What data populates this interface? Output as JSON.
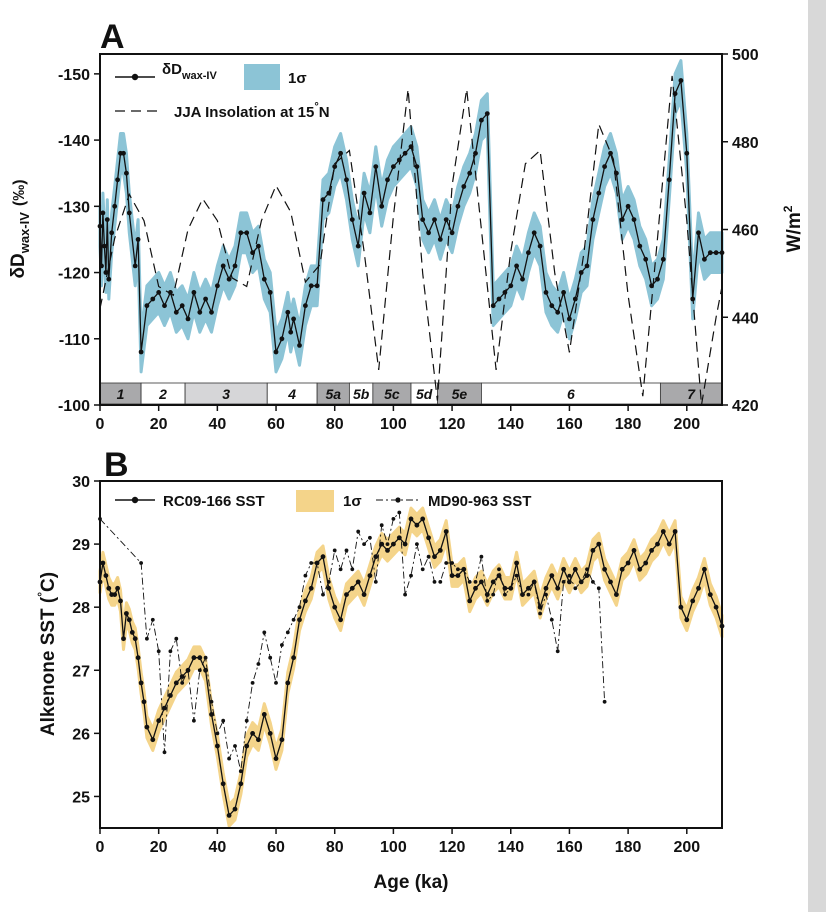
{
  "panels": {
    "a": {
      "label": "A"
    },
    "b": {
      "label": "B"
    }
  },
  "colors": {
    "band_a": "#8cc4d6",
    "band_b": "#f4d48a",
    "line": "#111111",
    "stage_dark": "#a9a9ab",
    "stage_mid": "#d6d6d8",
    "stage_light": "#ffffff"
  },
  "chart_data": [
    {
      "type": "line",
      "panel": "A",
      "xlabel": "",
      "ylabel_left": {
        "main": "δD",
        "sub": "wax-IV",
        "unit": "(‰)"
      },
      "ylabel_right": {
        "main": "W/m",
        "sup": "2"
      },
      "xlim": [
        0,
        212
      ],
      "ylim_left": [
        -100,
        -153
      ],
      "ylim_right": [
        420,
        500
      ],
      "x_ticks": [
        "0",
        "20",
        "40",
        "60",
        "80",
        "100",
        "120",
        "140",
        "160",
        "180",
        "200"
      ],
      "y_ticks_left": [
        "-150",
        "-140",
        "-130",
        "-120",
        "-110",
        "-100"
      ],
      "y_ticks_right": [
        "500",
        "480",
        "460",
        "440",
        "420"
      ],
      "legend": {
        "series1_main": "δD",
        "series1_sub": "wax-IV",
        "band": "1σ",
        "insolation_main": "JJA Insolation at 15",
        "insolation_deg": "°",
        "insolation_end": "N"
      },
      "series": [
        {
          "name": "δDwax-IV",
          "x": [
            0,
            0.5,
            1,
            1.5,
            2,
            2.5,
            3,
            4,
            5,
            6,
            7,
            8,
            9,
            10,
            12,
            13,
            14,
            16,
            18,
            20,
            22,
            24,
            26,
            28,
            30,
            32,
            34,
            36,
            38,
            40,
            42,
            44,
            46,
            48,
            50,
            52,
            54,
            56,
            58,
            60,
            62,
            64,
            65,
            66,
            68,
            70,
            72,
            74,
            76,
            78,
            80,
            82,
            84,
            86,
            88,
            90,
            92,
            94,
            96,
            98,
            100,
            102,
            104,
            106,
            108,
            110,
            112,
            114,
            116,
            118,
            120,
            122,
            124,
            126,
            128,
            130,
            132,
            134,
            136,
            138,
            140,
            142,
            144,
            146,
            148,
            150,
            152,
            154,
            156,
            158,
            160,
            162,
            164,
            166,
            168,
            170,
            172,
            174,
            176,
            178,
            180,
            182,
            184,
            186,
            188,
            190,
            192,
            194,
            196,
            198,
            200,
            202,
            204,
            206,
            208,
            210,
            212
          ],
          "values": [
            -127,
            -121,
            -129,
            -124,
            -120,
            -128,
            -119,
            -126,
            -130,
            -134,
            -138,
            -138,
            -135,
            -129,
            -121,
            -125,
            -108,
            -115,
            -116,
            -117,
            -115,
            -117,
            -114,
            -115,
            -113,
            -117,
            -114,
            -116,
            -114,
            -118,
            -121,
            -119,
            -121,
            -126,
            -126,
            -123,
            -124,
            -119,
            -117,
            -108,
            -110,
            -114,
            -111,
            -113,
            -109,
            -115,
            -118,
            -118,
            -131,
            -132,
            -136,
            -138,
            -134,
            -128,
            -124,
            -132,
            -129,
            -136,
            -130,
            -134,
            -136,
            -137,
            -138,
            -139,
            -136,
            -128,
            -126,
            -128,
            -125,
            -128,
            -126,
            -130,
            -133,
            -135,
            -138,
            -143,
            -144,
            -115,
            -116,
            -117,
            -118,
            -121,
            -119,
            -123,
            -126,
            -124,
            -117,
            -115,
            -114,
            -117,
            -113,
            -116,
            -120,
            -121,
            -128,
            -132,
            -136,
            -138,
            -135,
            -128,
            -130,
            -128,
            -124,
            -122,
            -118,
            -119,
            -122,
            -134,
            -147,
            -149,
            -138,
            -116,
            -126,
            -122,
            -123,
            -123,
            -123
          ],
          "sigma": 3
        },
        {
          "name": "JJA Insolation at 15°N",
          "x": [
            0,
            5,
            10,
            15,
            20,
            25,
            30,
            35,
            40,
            45,
            50,
            55,
            60,
            65,
            70,
            75,
            80,
            85,
            90,
            95,
            100,
            105,
            110,
            115,
            120,
            125,
            130,
            135,
            140,
            145,
            150,
            155,
            160,
            165,
            170,
            175,
            180,
            185,
            190,
            195,
            200,
            205,
            210,
            212
          ],
          "values": [
            442,
            458,
            468,
            462,
            447,
            445,
            460,
            467,
            462,
            449,
            447,
            462,
            470,
            464,
            448,
            452,
            475,
            478,
            455,
            428,
            463,
            492,
            450,
            421,
            470,
            492,
            460,
            428,
            455,
            475,
            478,
            450,
            432,
            455,
            484,
            476,
            445,
            422,
            458,
            495,
            462,
            420,
            440,
            447
          ]
        }
      ],
      "stages": [
        {
          "label": "1",
          "from": 0,
          "to": 14,
          "shade": "dark"
        },
        {
          "label": "2",
          "from": 14,
          "to": 29,
          "shade": "light"
        },
        {
          "label": "3",
          "from": 29,
          "to": 57,
          "shade": "mid"
        },
        {
          "label": "4",
          "from": 57,
          "to": 74,
          "shade": "light"
        },
        {
          "label": "5a",
          "from": 74,
          "to": 85,
          "shade": "dark"
        },
        {
          "label": "5b",
          "from": 85,
          "to": 93,
          "shade": "light"
        },
        {
          "label": "5c",
          "from": 93,
          "to": 106,
          "shade": "dark"
        },
        {
          "label": "5d",
          "from": 106,
          "to": 115,
          "shade": "light"
        },
        {
          "label": "5e",
          "from": 115,
          "to": 130,
          "shade": "dark"
        },
        {
          "label": "6",
          "from": 130,
          "to": 191,
          "shade": "light"
        },
        {
          "label": "7",
          "from": 191,
          "to": 212,
          "shade": "dark"
        }
      ]
    },
    {
      "type": "line",
      "panel": "B",
      "xlabel": "Age (ka)",
      "ylabel": {
        "main": "Alkenone SST (",
        "deg": "°",
        "end": "C)"
      },
      "xlim": [
        0,
        212
      ],
      "ylim": [
        24.5,
        30.0
      ],
      "x_ticks": [
        "0",
        "20",
        "40",
        "60",
        "80",
        "100",
        "120",
        "140",
        "160",
        "180",
        "200"
      ],
      "y_ticks": [
        "30",
        "29",
        "28",
        "27",
        "26",
        "25"
      ],
      "legend": {
        "s1": "RC09-166 SST",
        "band": "1σ",
        "s2": "MD90-963 SST"
      },
      "series": [
        {
          "name": "RC09-166 SST",
          "x": [
            0,
            1,
            2,
            3,
            4,
            5,
            6,
            7,
            8,
            9,
            10,
            11,
            12,
            13,
            14,
            15,
            16,
            18,
            20,
            22,
            24,
            26,
            28,
            30,
            32,
            34,
            36,
            38,
            40,
            42,
            44,
            46,
            48,
            50,
            52,
            54,
            56,
            58,
            60,
            62,
            64,
            66,
            68,
            70,
            72,
            74,
            76,
            78,
            80,
            82,
            84,
            86,
            88,
            90,
            92,
            94,
            96,
            98,
            100,
            102,
            104,
            106,
            108,
            110,
            112,
            114,
            116,
            118,
            120,
            122,
            124,
            126,
            128,
            130,
            132,
            134,
            136,
            138,
            140,
            142,
            144,
            146,
            148,
            150,
            152,
            154,
            156,
            158,
            160,
            162,
            164,
            166,
            168,
            170,
            172,
            174,
            176,
            178,
            180,
            182,
            184,
            186,
            188,
            190,
            192,
            194,
            196,
            198,
            200,
            202,
            204,
            206,
            208,
            210,
            212
          ],
          "values": [
            28.4,
            28.7,
            28.5,
            28.3,
            28.2,
            28.2,
            28.3,
            28.1,
            27.5,
            27.9,
            27.8,
            27.6,
            27.5,
            27.2,
            26.8,
            26.5,
            26.1,
            25.9,
            26.2,
            26.4,
            26.6,
            26.8,
            26.9,
            27.0,
            27.2,
            27.2,
            27.0,
            26.3,
            25.8,
            25.2,
            24.7,
            24.8,
            25.2,
            25.8,
            26.0,
            25.9,
            26.3,
            26.0,
            25.6,
            25.9,
            26.8,
            27.2,
            27.8,
            28.1,
            28.3,
            28.7,
            28.8,
            28.3,
            28.0,
            27.8,
            28.2,
            28.3,
            28.4,
            28.2,
            28.5,
            28.8,
            29.0,
            28.9,
            29.0,
            29.1,
            29.0,
            29.4,
            29.3,
            29.4,
            29.1,
            28.8,
            28.9,
            29.2,
            28.5,
            28.5,
            28.6,
            28.1,
            28.3,
            28.4,
            28.2,
            28.4,
            28.5,
            28.3,
            28.3,
            28.7,
            28.2,
            28.3,
            28.4,
            28.0,
            28.3,
            28.5,
            28.3,
            28.6,
            28.4,
            28.6,
            28.4,
            28.5,
            28.9,
            29.0,
            28.6,
            28.4,
            28.2,
            28.6,
            28.7,
            28.9,
            28.6,
            28.7,
            28.9,
            29.0,
            29.2,
            29.0,
            29.2,
            28.0,
            27.8,
            28.1,
            28.3,
            28.6,
            28.2,
            28.0,
            27.7
          ],
          "sigma": 0.17
        },
        {
          "name": "MD90-963 SST",
          "x": [
            0,
            14,
            16,
            18,
            20,
            22,
            24,
            26,
            28,
            30,
            32,
            34,
            36,
            38,
            40,
            42,
            44,
            46,
            48,
            50,
            52,
            54,
            56,
            58,
            60,
            62,
            64,
            66,
            68,
            70,
            72,
            74,
            76,
            78,
            80,
            82,
            84,
            86,
            88,
            90,
            92,
            94,
            96,
            98,
            100,
            102,
            104,
            106,
            108,
            110,
            112,
            114,
            116,
            118,
            120,
            122,
            124,
            126,
            128,
            130,
            132,
            134,
            136,
            138,
            140,
            142,
            144,
            146,
            148,
            150,
            152,
            154,
            156,
            158,
            160,
            162,
            164,
            166,
            168,
            170,
            172
          ],
          "values": [
            29.4,
            28.7,
            27.5,
            27.8,
            27.3,
            25.7,
            27.3,
            27.5,
            26.8,
            27.0,
            26.2,
            27.0,
            27.2,
            26.5,
            26.0,
            26.2,
            25.6,
            25.8,
            25.4,
            26.2,
            26.8,
            27.1,
            27.6,
            27.2,
            26.8,
            27.4,
            27.6,
            27.8,
            28.0,
            28.5,
            28.7,
            28.7,
            28.2,
            28.4,
            28.9,
            28.6,
            28.9,
            28.6,
            29.2,
            29.0,
            29.1,
            28.4,
            29.3,
            29.0,
            29.4,
            29.5,
            28.2,
            28.5,
            29.0,
            28.6,
            28.8,
            28.4,
            28.4,
            28.7,
            28.7,
            28.6,
            28.6,
            28.4,
            28.4,
            28.8,
            28.1,
            28.2,
            28.6,
            28.2,
            28.3,
            28.5,
            28.2,
            28.2,
            28.4,
            27.9,
            28.2,
            27.8,
            27.3,
            28.4,
            28.5,
            28.3,
            28.4,
            28.6,
            28.4,
            28.3,
            26.5
          ]
        }
      ]
    }
  ]
}
